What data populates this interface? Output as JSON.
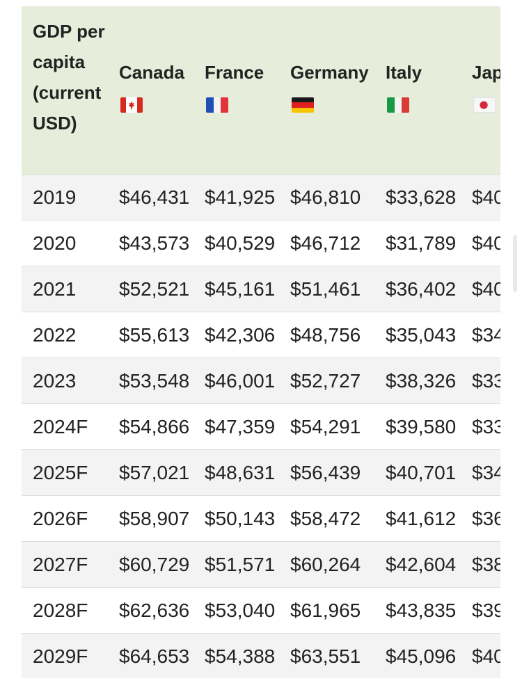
{
  "table": {
    "header": {
      "first_col": "GDP per capita (current USD)",
      "countries": [
        {
          "name": "Canada",
          "flag": "canada-flag"
        },
        {
          "name": "France",
          "flag": "france-flag"
        },
        {
          "name": "Germany",
          "flag": "germany-flag"
        },
        {
          "name": "Italy",
          "flag": "italy-flag"
        },
        {
          "name": "Jap",
          "flag": "japan-flag"
        }
      ]
    },
    "rows": [
      {
        "year": "2019",
        "values": [
          "$46,431",
          "$41,925",
          "$46,810",
          "$33,628",
          "$40"
        ]
      },
      {
        "year": "2020",
        "values": [
          "$43,573",
          "$40,529",
          "$46,712",
          "$31,789",
          "$40"
        ]
      },
      {
        "year": "2021",
        "values": [
          "$52,521",
          "$45,161",
          "$51,461",
          "$36,402",
          "$40"
        ]
      },
      {
        "year": "2022",
        "values": [
          "$55,613",
          "$42,306",
          "$48,756",
          "$35,043",
          "$34"
        ]
      },
      {
        "year": "2023",
        "values": [
          "$53,548",
          "$46,001",
          "$52,727",
          "$38,326",
          "$33"
        ]
      },
      {
        "year": "2024F",
        "values": [
          "$54,866",
          "$47,359",
          "$54,291",
          "$39,580",
          "$33"
        ]
      },
      {
        "year": "2025F",
        "values": [
          "$57,021",
          "$48,631",
          "$56,439",
          "$40,701",
          "$34"
        ]
      },
      {
        "year": "2026F",
        "values": [
          "$58,907",
          "$50,143",
          "$58,472",
          "$41,612",
          "$36"
        ]
      },
      {
        "year": "2027F",
        "values": [
          "$60,729",
          "$51,571",
          "$60,264",
          "$42,604",
          "$38"
        ]
      },
      {
        "year": "2028F",
        "values": [
          "$62,636",
          "$53,040",
          "$61,965",
          "$43,835",
          "$39"
        ]
      },
      {
        "year": "2029F",
        "values": [
          "$64,653",
          "$54,388",
          "$63,551",
          "$45,096",
          "$40"
        ]
      }
    ]
  },
  "colors": {
    "header_bg": "#e6eedb",
    "row_alt_bg": "#f3f3f3",
    "text": "#222222"
  }
}
